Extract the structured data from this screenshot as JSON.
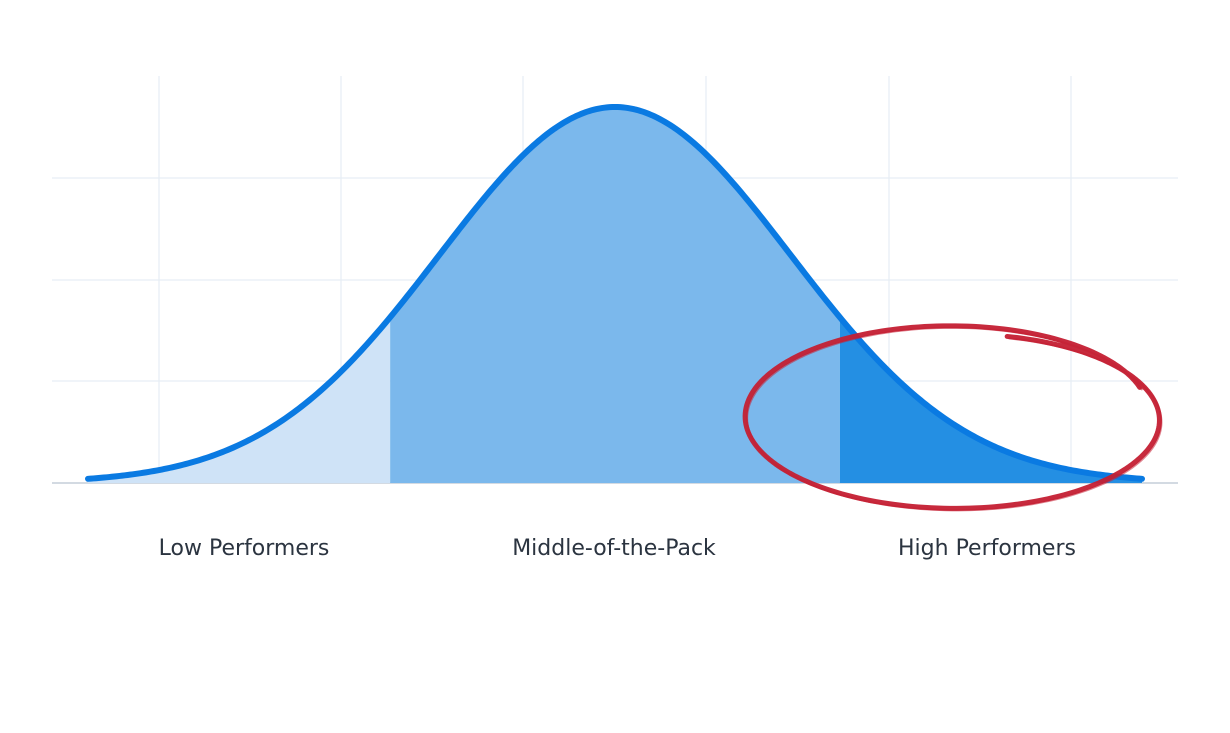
{
  "chart_data": {
    "type": "area",
    "title": "",
    "xlabel": "",
    "ylabel": "",
    "distribution": "normal",
    "x_range": [
      -3.0,
      3.0
    ],
    "segments": [
      {
        "label": "Low Performers",
        "x_from": -3.0,
        "x_to": -1.28,
        "color": "#cfe3f7"
      },
      {
        "label": "Middle-of-the-Pack",
        "x_from": -1.28,
        "x_to": 1.28,
        "color": "#7bb8ec"
      },
      {
        "label": "High Performers",
        "x_from": 1.28,
        "x_to": 3.0,
        "color": "#248fe3",
        "highlighted": true
      }
    ],
    "grid": true,
    "curve_color": "#0a7ae2",
    "highlight_color": "#c41f33"
  }
}
